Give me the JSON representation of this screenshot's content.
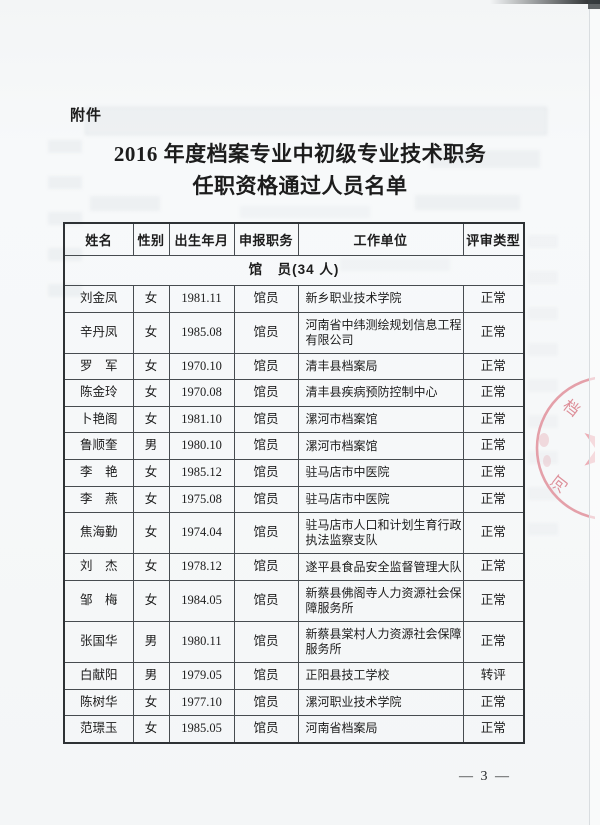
{
  "page": {
    "attachment_label": "附件",
    "title_line1": "2016 年度档案专业中初级专业技术职务",
    "title_line2": "任职资格通过人员名单",
    "page_number": "— 3 —"
  },
  "table": {
    "headers": [
      "姓名",
      "性别",
      "出生年月",
      "申报职务",
      "工作单位",
      "评审类型"
    ],
    "section_header": "馆　员(34 人)",
    "rows": [
      [
        "刘金凤",
        "女",
        "1981.11",
        "馆员",
        "新乡职业技术学院",
        "正常"
      ],
      [
        "辛丹凤",
        "女",
        "1985.08",
        "馆员",
        "河南省中纬测绘规划信息工程有限公司",
        "正常"
      ],
      [
        "罗　军",
        "女",
        "1970.10",
        "馆员",
        "清丰县档案局",
        "正常"
      ],
      [
        "陈金玲",
        "女",
        "1970.08",
        "馆员",
        "清丰县疾病预防控制中心",
        "正常"
      ],
      [
        "卜艳阁",
        "女",
        "1981.10",
        "馆员",
        "漯河市档案馆",
        "正常"
      ],
      [
        "鲁顺奎",
        "男",
        "1980.10",
        "馆员",
        "漯河市档案馆",
        "正常"
      ],
      [
        "李　艳",
        "女",
        "1985.12",
        "馆员",
        "驻马店市中医院",
        "正常"
      ],
      [
        "李　燕",
        "女",
        "1975.08",
        "馆员",
        "驻马店市中医院",
        "正常"
      ],
      [
        "焦海勤",
        "女",
        "1974.04",
        "馆员",
        "驻马店市人口和计划生育行政执法监察支队",
        "正常"
      ],
      [
        "刘　杰",
        "女",
        "1978.12",
        "馆员",
        "遂平县食品安全监督管理大队",
        "正常"
      ],
      [
        "邹　梅",
        "女",
        "1984.05",
        "馆员",
        "新蔡县佛阁寺人力资源社会保障服务所",
        "正常"
      ],
      [
        "张国华",
        "男",
        "1980.11",
        "馆员",
        "新蔡县棠村人力资源社会保障服务所",
        "正常"
      ],
      [
        "白献阳",
        "男",
        "1979.05",
        "馆员",
        "正阳县技工学校",
        "转评"
      ],
      [
        "陈树华",
        "女",
        "1977.10",
        "馆员",
        "漯河职业技术学院",
        "正常"
      ],
      [
        "范璟玉",
        "女",
        "1985.05",
        "馆员",
        "河南省档案局",
        "正常"
      ]
    ]
  },
  "stamp": {
    "char_top": "档",
    "char_bottom": "河",
    "color": "#dd8793"
  }
}
